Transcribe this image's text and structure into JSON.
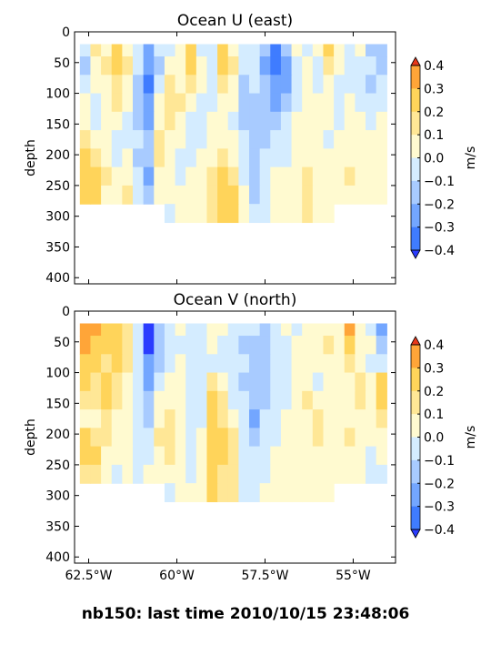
{
  "figure_title": "nb150: last time 2010/10/15 23:48:06",
  "colors": {
    "levels": [
      "#2a3cff",
      "#3f7cff",
      "#73a6ff",
      "#a8cbff",
      "#d4ecff",
      "#fffad0",
      "#ffe796",
      "#ffd45a",
      "#ffa538",
      "#ff7a22",
      "#ff4a14"
    ],
    "extend_low": "#2a3cff",
    "extend_high": "#e8381a"
  },
  "chart_data": [
    {
      "type": "heatmap",
      "title": "Ocean U (east)",
      "xlabel": "",
      "ylabel": "depth",
      "xlim": [
        -62.9,
        -53.8
      ],
      "ylim": [
        410,
        0
      ],
      "xticks": [],
      "yticks": [
        "0",
        "50",
        "100",
        "150",
        "200",
        "250",
        "300",
        "350",
        "400"
      ],
      "colorbar": {
        "label": "m/s",
        "ticks": [
          "0.4",
          "0.3",
          "0.2",
          "0.1",
          "0.0",
          "−0.1",
          "−0.2",
          "−0.3",
          "−0.4"
        ],
        "extend": "both"
      },
      "lon": [
        -62.6,
        -62.3,
        -62.0,
        -61.7,
        -61.4,
        -61.1,
        -60.8,
        -60.5,
        -60.2,
        -59.9,
        -59.6,
        -59.3,
        -59.0,
        -58.7,
        -58.4,
        -58.1,
        -57.8,
        -57.5,
        -57.2,
        -56.9,
        -56.6,
        -56.3,
        -56.0,
        -55.7,
        -55.4,
        -55.1,
        -54.8,
        -54.5,
        -54.2
      ],
      "depth": [
        25,
        55,
        85,
        115,
        145,
        175,
        205,
        235,
        265,
        295
      ],
      "values": [
        [
          -0.1,
          0.1,
          0.0,
          0.2,
          0.0,
          -0.1,
          -0.3,
          -0.1,
          -0.1,
          0.0,
          0.2,
          -0.1,
          -0.1,
          0.2,
          0.0,
          -0.1,
          -0.1,
          -0.2,
          -0.4,
          -0.2,
          0.0,
          -0.1,
          0.0,
          0.2,
          0.0,
          -0.1,
          0.0,
          -0.2,
          -0.2
        ],
        [
          -0.2,
          0.0,
          0.1,
          0.2,
          0.1,
          -0.1,
          -0.3,
          -0.2,
          0.0,
          0.0,
          0.2,
          0.0,
          -0.1,
          0.2,
          0.1,
          -0.1,
          -0.1,
          -0.3,
          -0.4,
          -0.3,
          -0.1,
          0.0,
          -0.1,
          0.1,
          0.0,
          -0.1,
          -0.1,
          -0.1,
          -0.2
        ],
        [
          -0.1,
          0.0,
          0.0,
          0.1,
          0.0,
          -0.2,
          -0.4,
          -0.1,
          0.1,
          0.0,
          0.1,
          0.0,
          -0.1,
          0.1,
          0.0,
          -0.2,
          -0.1,
          -0.2,
          -0.3,
          -0.3,
          -0.1,
          0.0,
          -0.1,
          0.0,
          -0.1,
          -0.1,
          -0.1,
          -0.2,
          -0.1
        ],
        [
          0.0,
          -0.1,
          0.0,
          0.1,
          0.0,
          -0.2,
          -0.3,
          0.0,
          0.1,
          0.1,
          0.0,
          -0.1,
          -0.1,
          0.0,
          0.0,
          -0.2,
          -0.2,
          -0.2,
          -0.3,
          -0.2,
          -0.1,
          0.0,
          0.0,
          0.0,
          -0.1,
          0.0,
          -0.1,
          -0.1,
          -0.1
        ],
        [
          0.0,
          -0.1,
          0.0,
          0.0,
          -0.1,
          -0.2,
          -0.3,
          0.0,
          0.1,
          0.0,
          -0.1,
          -0.1,
          0.0,
          0.0,
          -0.1,
          -0.2,
          -0.2,
          -0.2,
          -0.2,
          -0.1,
          0.0,
          0.0,
          0.0,
          0.0,
          -0.1,
          0.0,
          0.0,
          -0.1,
          0.0
        ],
        [
          0.1,
          0.0,
          0.0,
          -0.1,
          -0.1,
          -0.1,
          -0.2,
          0.1,
          0.0,
          0.0,
          -0.1,
          -0.1,
          0.0,
          0.0,
          0.0,
          -0.1,
          -0.2,
          -0.2,
          -0.1,
          -0.1,
          0.0,
          0.0,
          0.0,
          -0.1,
          0.0,
          0.0,
          0.0,
          0.0,
          0.0
        ],
        [
          0.2,
          0.1,
          0.0,
          -0.1,
          0.0,
          -0.2,
          -0.2,
          0.1,
          0.0,
          -0.1,
          -0.1,
          0.0,
          0.0,
          0.1,
          0.0,
          -0.1,
          -0.2,
          -0.1,
          -0.1,
          -0.1,
          0.0,
          0.0,
          0.0,
          0.0,
          0.0,
          0.0,
          0.0,
          0.0,
          0.0
        ],
        [
          0.2,
          0.2,
          0.1,
          0.0,
          0.0,
          -0.1,
          -0.3,
          0.0,
          0.0,
          -0.1,
          0.0,
          0.0,
          0.1,
          0.2,
          0.1,
          -0.1,
          -0.2,
          -0.1,
          0.0,
          0.0,
          0.0,
          0.1,
          0.0,
          0.0,
          0.0,
          0.1,
          0.0,
          0.0,
          0.0
        ],
        [
          0.2,
          0.2,
          0.0,
          0.0,
          0.1,
          -0.1,
          -0.2,
          0.0,
          0.0,
          0.0,
          0.0,
          0.0,
          0.1,
          0.2,
          0.2,
          0.0,
          -0.2,
          -0.1,
          0.0,
          0.0,
          0.0,
          0.1,
          0.0,
          0.0,
          0.0,
          0.0,
          0.0,
          0.0,
          0.0
        ],
        [
          null,
          null,
          null,
          null,
          null,
          null,
          null,
          null,
          -0.1,
          0.0,
          0.0,
          0.0,
          0.1,
          0.2,
          0.2,
          0.0,
          -0.1,
          -0.1,
          0.0,
          0.0,
          0.0,
          0.1,
          0.0,
          0.0,
          null,
          null,
          null,
          null,
          null
        ]
      ]
    },
    {
      "type": "heatmap",
      "title": "Ocean V (north)",
      "xlabel": "",
      "ylabel": "depth",
      "xlim": [
        -62.9,
        -53.8
      ],
      "ylim": [
        410,
        0
      ],
      "xticks": [
        "62.5°W",
        "60°W",
        "57.5°W",
        "55°W"
      ],
      "yticks": [
        "0",
        "50",
        "100",
        "150",
        "200",
        "250",
        "300",
        "350",
        "400"
      ],
      "colorbar": {
        "label": "m/s",
        "ticks": [
          "0.4",
          "0.3",
          "0.2",
          "0.1",
          "0.0",
          "−0.1",
          "−0.2",
          "−0.3",
          "−0.4"
        ],
        "extend": "both"
      },
      "lon": [
        -62.6,
        -62.3,
        -62.0,
        -61.7,
        -61.4,
        -61.1,
        -60.8,
        -60.5,
        -60.2,
        -59.9,
        -59.6,
        -59.3,
        -59.0,
        -58.7,
        -58.4,
        -58.1,
        -57.8,
        -57.5,
        -57.2,
        -56.9,
        -56.6,
        -56.3,
        -56.0,
        -55.7,
        -55.4,
        -55.1,
        -54.8,
        -54.5,
        -54.2
      ],
      "depth": [
        25,
        55,
        85,
        115,
        145,
        175,
        205,
        235,
        265,
        295
      ],
      "values": [
        [
          0.3,
          0.3,
          0.2,
          0.2,
          0.1,
          -0.1,
          -0.5,
          -0.2,
          -0.1,
          0.0,
          -0.1,
          -0.1,
          0.0,
          0.0,
          -0.1,
          -0.1,
          -0.1,
          -0.2,
          -0.1,
          0.0,
          -0.1,
          0.0,
          0.0,
          0.0,
          0.0,
          0.3,
          0.0,
          -0.1,
          -0.3
        ],
        [
          0.3,
          0.2,
          0.2,
          0.2,
          0.1,
          -0.1,
          -0.5,
          -0.2,
          -0.1,
          -0.1,
          -0.1,
          -0.1,
          0.0,
          -0.1,
          -0.1,
          -0.2,
          -0.2,
          -0.2,
          -0.1,
          -0.1,
          0.0,
          0.0,
          0.0,
          0.1,
          0.0,
          0.2,
          0.0,
          0.0,
          -0.2
        ],
        [
          0.2,
          0.2,
          0.1,
          0.2,
          0.1,
          -0.1,
          -0.3,
          -0.2,
          -0.1,
          0.0,
          -0.1,
          -0.1,
          -0.1,
          -0.1,
          -0.1,
          -0.1,
          -0.2,
          -0.2,
          -0.1,
          -0.1,
          0.0,
          0.0,
          0.0,
          0.0,
          0.0,
          0.1,
          0.0,
          -0.1,
          -0.1
        ],
        [
          0.2,
          0.1,
          0.2,
          0.1,
          0.0,
          -0.1,
          -0.3,
          -0.1,
          0.0,
          0.0,
          -0.1,
          -0.1,
          0.1,
          0.0,
          -0.1,
          -0.2,
          -0.2,
          -0.2,
          -0.1,
          -0.1,
          0.0,
          0.0,
          -0.1,
          0.0,
          0.0,
          0.0,
          0.1,
          0.0,
          0.2
        ],
        [
          0.1,
          0.1,
          0.2,
          0.1,
          0.0,
          -0.1,
          -0.2,
          0.0,
          0.0,
          0.0,
          -0.1,
          -0.1,
          0.2,
          0.1,
          -0.1,
          -0.1,
          -0.2,
          -0.2,
          -0.1,
          -0.1,
          0.0,
          0.1,
          0.0,
          0.0,
          0.0,
          0.0,
          0.1,
          0.0,
          0.2
        ],
        [
          0.0,
          0.0,
          0.1,
          0.0,
          0.0,
          -0.1,
          -0.2,
          0.0,
          0.1,
          0.0,
          -0.1,
          -0.1,
          0.2,
          0.1,
          0.0,
          -0.1,
          -0.3,
          -0.1,
          -0.1,
          0.0,
          0.0,
          0.0,
          0.1,
          0.0,
          0.0,
          0.0,
          0.0,
          0.0,
          0.1
        ],
        [
          0.2,
          0.1,
          0.1,
          0.0,
          0.0,
          -0.1,
          -0.1,
          0.1,
          0.1,
          0.0,
          -0.1,
          0.0,
          0.2,
          0.2,
          0.1,
          -0.1,
          -0.2,
          -0.1,
          -0.1,
          0.0,
          0.0,
          0.0,
          0.1,
          0.0,
          0.0,
          0.1,
          0.0,
          0.0,
          0.0
        ],
        [
          0.2,
          0.2,
          0.0,
          0.0,
          0.0,
          -0.1,
          -0.1,
          0.0,
          0.1,
          0.0,
          -0.1,
          0.0,
          0.2,
          0.2,
          0.1,
          -0.1,
          -0.1,
          -0.1,
          0.0,
          0.0,
          0.0,
          0.0,
          0.0,
          0.0,
          0.0,
          0.0,
          0.0,
          -0.1,
          0.0
        ],
        [
          0.1,
          0.1,
          0.0,
          -0.1,
          0.0,
          -0.1,
          0.0,
          0.0,
          0.0,
          0.0,
          -0.1,
          0.0,
          0.2,
          0.1,
          0.1,
          -0.1,
          -0.1,
          -0.1,
          0.0,
          0.0,
          0.0,
          0.0,
          0.0,
          0.0,
          0.0,
          0.0,
          0.0,
          -0.1,
          -0.1
        ],
        [
          null,
          null,
          null,
          null,
          null,
          null,
          null,
          null,
          -0.1,
          0.0,
          0.0,
          0.0,
          0.2,
          0.1,
          0.1,
          -0.1,
          -0.1,
          0.0,
          0.0,
          0.0,
          0.0,
          0.0,
          0.0,
          0.0,
          null,
          null,
          null,
          null,
          null
        ]
      ]
    }
  ]
}
